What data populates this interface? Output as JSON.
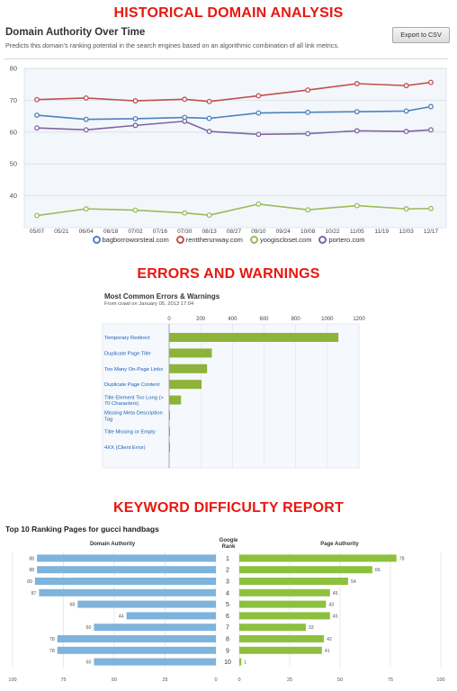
{
  "headings": {
    "historical": "HISTORICAL DOMAIN ANALYSIS",
    "errors": "ERRORS AND WARNINGS",
    "keyword": "KEYWORD DIFFICULTY REPORT"
  },
  "domain_authority": {
    "title": "Domain Authority Over Time",
    "description": "Predicts this domain's ranking potential in the search engines based on an algorithmic combination of all link metrics.",
    "export_label": "Export to CSV"
  },
  "errors": {
    "title": "Most Common Errors & Warnings",
    "subtitle": "From crawl on January 05, 2013 17:04"
  },
  "keyword": {
    "title": "Top 10 Ranking Pages for gucci handbags",
    "left_header": "Domain Authority",
    "middle_header": "Google Rank",
    "right_header": "Page Authority"
  },
  "chart_data": [
    {
      "type": "line",
      "x": [
        "05/07",
        "05/21",
        "06/04",
        "06/18",
        "07/02",
        "07/16",
        "07/30",
        "08/13",
        "08/27",
        "09/10",
        "09/24",
        "10/08",
        "10/22",
        "11/05",
        "11/19",
        "12/03",
        "12/17"
      ],
      "ylim": [
        30,
        80
      ],
      "yticks": [
        40,
        50,
        60,
        70,
        80
      ],
      "grid": true,
      "legend_position": "bottom",
      "series": [
        {
          "name": "bagborroworsteal.com",
          "color": "#4f81bd",
          "points": [
            [
              "05/07",
              65.3
            ],
            [
              "06/04",
              64.0
            ],
            [
              "07/02",
              64.2
            ],
            [
              "07/30",
              64.6
            ],
            [
              "08/13",
              64.3
            ],
            [
              "09/10",
              66.0
            ],
            [
              "10/08",
              66.2
            ],
            [
              "11/05",
              66.4
            ],
            [
              "12/03",
              66.6
            ],
            [
              "12/17",
              68.0
            ]
          ]
        },
        {
          "name": "renttherunway.com",
          "color": "#c0504d",
          "points": [
            [
              "05/07",
              70.2
            ],
            [
              "06/04",
              70.7
            ],
            [
              "07/02",
              69.8
            ],
            [
              "07/30",
              70.3
            ],
            [
              "08/13",
              69.6
            ],
            [
              "09/10",
              71.4
            ],
            [
              "10/08",
              73.2
            ],
            [
              "11/05",
              75.2
            ],
            [
              "12/03",
              74.6
            ],
            [
              "12/17",
              75.6
            ]
          ]
        },
        {
          "name": "yoogiscloset.com",
          "color": "#9bbb59",
          "points": [
            [
              "05/07",
              33.8
            ],
            [
              "06/04",
              35.9
            ],
            [
              "07/02",
              35.5
            ],
            [
              "07/30",
              34.6
            ],
            [
              "08/13",
              33.9
            ],
            [
              "09/10",
              37.4
            ],
            [
              "10/08",
              35.6
            ],
            [
              "11/05",
              36.9
            ],
            [
              "12/03",
              35.9
            ],
            [
              "12/17",
              36.0
            ]
          ]
        },
        {
          "name": "portero.com",
          "color": "#8064a2",
          "points": [
            [
              "05/07",
              61.3
            ],
            [
              "06/04",
              60.7
            ],
            [
              "07/02",
              62.1
            ],
            [
              "07/30",
              63.4
            ],
            [
              "08/13",
              60.2
            ],
            [
              "09/10",
              59.3
            ],
            [
              "10/08",
              59.5
            ],
            [
              "11/05",
              60.4
            ],
            [
              "12/03",
              60.2
            ],
            [
              "12/17",
              60.7
            ]
          ]
        }
      ]
    },
    {
      "type": "bar",
      "orientation": "horizontal",
      "title": "Most Common Errors & Warnings",
      "xlim": [
        0,
        1200
      ],
      "xticks": [
        0,
        200,
        400,
        600,
        800,
        1000,
        1200
      ],
      "categories": [
        "Temporary Redirect",
        "Duplicate Page Title",
        "Too Many On-Page Links",
        "Duplicate Page Content",
        "Title Element Too Long (> 70 Characters)",
        "Missing Meta Description Tag",
        "Title Missing or Empty",
        "4XX (Client Error)"
      ],
      "values": [
        1070,
        270,
        240,
        205,
        75,
        4,
        3,
        2
      ],
      "color": "#8db33a"
    },
    {
      "type": "bar",
      "orientation": "horizontal",
      "title": "Top 10 Ranking Pages for gucci handbags",
      "categories": [
        "1",
        "2",
        "3",
        "4",
        "5",
        "6",
        "7",
        "8",
        "9",
        "10"
      ],
      "series": [
        {
          "name": "Domain Authority",
          "color": "#7eb3dc",
          "values": [
            88,
            88,
            89,
            87,
            68,
            44,
            60,
            78,
            78,
            60
          ]
        },
        {
          "name": "Page Authority",
          "color": "#8ec03f",
          "values": [
            78,
            66,
            54,
            45,
            43,
            45,
            33,
            42,
            41,
            1
          ]
        }
      ],
      "xlim": [
        0,
        100
      ],
      "left_ticks": [
        "100",
        "75",
        "50",
        "25",
        "0"
      ],
      "right_ticks": [
        "0",
        "25",
        "50",
        "75",
        "100"
      ]
    }
  ]
}
